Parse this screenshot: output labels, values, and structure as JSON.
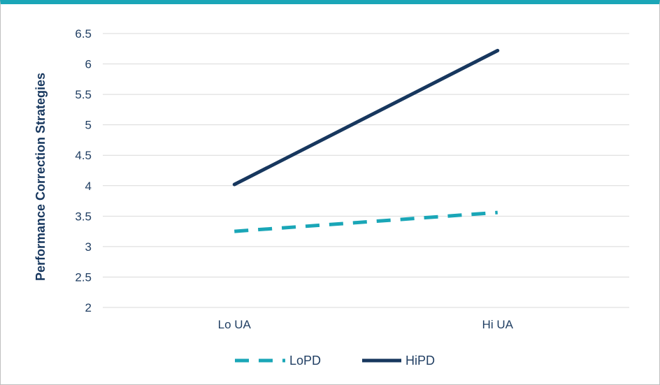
{
  "chart_data": {
    "type": "line",
    "title": "",
    "xlabel": "",
    "ylabel": "Performance Correction Strategies",
    "categories": [
      "Lo UA",
      "Hi UA"
    ],
    "ylim": [
      2,
      6.5
    ],
    "yticks": [
      "2",
      "2.5",
      "3",
      "3.5",
      "4",
      "4.5",
      "5",
      "5.5",
      "6",
      "6.5"
    ],
    "grid": true,
    "legend_position": "bottom",
    "series": [
      {
        "name": "LoPD",
        "values": [
          3.25,
          3.56
        ],
        "color": "#1aa6b7",
        "dash": "dashed"
      },
      {
        "name": "HiPD",
        "values": [
          4.02,
          6.22
        ],
        "color": "#17375e",
        "dash": "solid"
      }
    ]
  }
}
